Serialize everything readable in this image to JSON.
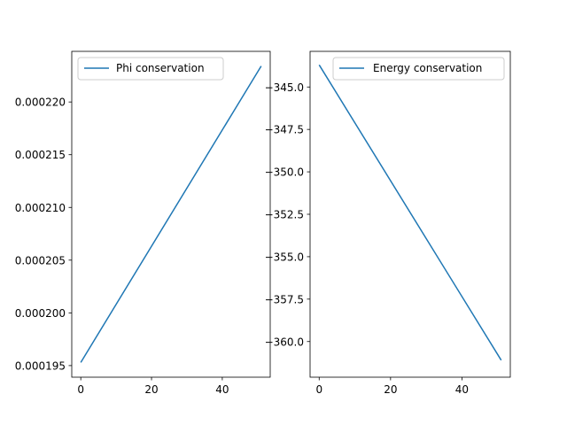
{
  "chart_data": [
    {
      "type": "line",
      "title": "",
      "xlabel": "",
      "ylabel": "",
      "xlim": [
        -2.55,
        53.55
      ],
      "ylim": [
        0.0001939,
        0.0002248
      ],
      "xticks": [
        0,
        20,
        40
      ],
      "xtick_labels": [
        "0",
        "20",
        "40"
      ],
      "yticks": [
        0.000195,
        0.0002,
        0.000205,
        0.00021,
        0.000215,
        0.00022
      ],
      "ytick_labels": [
        "0.000195",
        "0.000200",
        "0.000205",
        "0.000210",
        "0.000215",
        "0.000220"
      ],
      "legend_position": "top-left",
      "grid": false,
      "series": [
        {
          "name": "Phi conservation",
          "color": "#1f77b4",
          "x": [
            0,
            51
          ],
          "y": [
            0.0001953,
            0.0002234
          ]
        }
      ]
    },
    {
      "type": "line",
      "title": "",
      "xlabel": "",
      "ylabel": "",
      "xlim": [
        -2.55,
        53.55
      ],
      "ylim": [
        -362.1,
        -342.9
      ],
      "xticks": [
        0,
        20,
        40
      ],
      "xtick_labels": [
        "0",
        "20",
        "40"
      ],
      "yticks": [
        -345.0,
        -347.5,
        -350.0,
        -352.5,
        -355.0,
        -357.5,
        -360.0
      ],
      "ytick_labels": [
        "−345.0",
        "−347.5",
        "−350.0",
        "−352.5",
        "−355.0",
        "−357.5",
        "−360.0"
      ],
      "legend_position": "top-right",
      "grid": false,
      "series": [
        {
          "name": "Energy conservation",
          "color": "#1f77b4",
          "x": [
            0,
            51
          ],
          "y": [
            -343.7,
            -361.1
          ]
        }
      ]
    }
  ]
}
